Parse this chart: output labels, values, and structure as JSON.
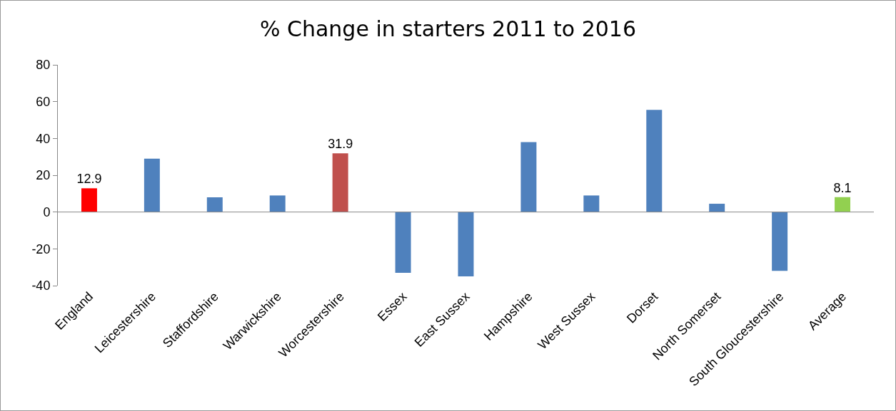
{
  "chart_data": {
    "type": "bar",
    "title": "% Change in starters 2011 to 2016",
    "categories": [
      "England",
      "Leicestershire",
      "Staffordshire",
      "Warwickshire",
      "Worcestershire",
      "Essex",
      "East Sussex",
      "Hampshire",
      "West Sussex",
      "Dorset",
      "North Somerset",
      "South Gloucestershire",
      "Average"
    ],
    "values": [
      12.9,
      29,
      8,
      9,
      31.9,
      -33,
      -35,
      38,
      9,
      55.5,
      4.5,
      -32,
      8.1
    ],
    "colors": [
      "#ff0000",
      "#4f81bd",
      "#4f81bd",
      "#4f81bd",
      "#c0504d",
      "#4f81bd",
      "#4f81bd",
      "#4f81bd",
      "#4f81bd",
      "#4f81bd",
      "#4f81bd",
      "#4f81bd",
      "#92d050"
    ],
    "value_labels": [
      "12.9",
      null,
      null,
      null,
      "31.9",
      null,
      null,
      null,
      null,
      null,
      null,
      null,
      "8.1"
    ],
    "ylim": [
      -40,
      80
    ],
    "yticks": [
      -40,
      -20,
      0,
      20,
      40,
      60,
      80
    ]
  }
}
